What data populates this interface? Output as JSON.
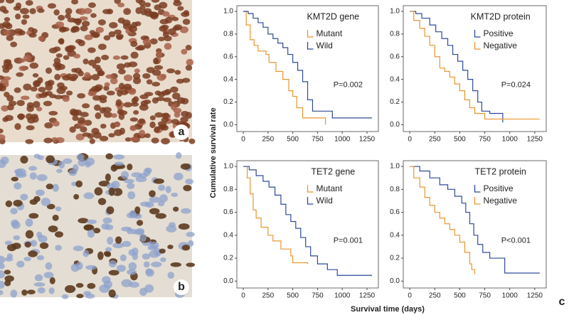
{
  "figure": {
    "ylabel": "Cumulative survival rate",
    "xlabel": "Survival time (days)",
    "panel_labels": [
      "a",
      "b",
      "c"
    ]
  },
  "chart_data": [
    {
      "type": "line",
      "title": "KMT2D gene",
      "annotation": "P=0.002",
      "xlim": [
        -65,
        1365
      ],
      "ylim": [
        -0.06,
        1.05
      ],
      "xticks": [
        0,
        250,
        500,
        750,
        1000,
        1250
      ],
      "yticks": [
        {
          "value": 0,
          "label": "0.0"
        },
        {
          "value": 0.2,
          "label": "0.2"
        },
        {
          "value": 0.4,
          "label": "0.4"
        },
        {
          "value": 0.6,
          "label": "0.6"
        },
        {
          "value": 0.8,
          "label": "0.8"
        },
        {
          "value": 1,
          "label": "1.0"
        }
      ],
      "series": [
        {
          "name": "Mutant",
          "color": "#e8962e",
          "x": [
            0,
            30,
            70,
            110,
            150,
            230,
            260,
            330,
            400,
            460,
            500,
            540,
            600,
            680,
            830
          ],
          "values": [
            1,
            0.88,
            0.75,
            0.7,
            0.65,
            0.62,
            0.55,
            0.47,
            0.4,
            0.3,
            0.25,
            0.15,
            0.06,
            0.06,
            0
          ]
        },
        {
          "name": "Wild",
          "color": "#2e4a9a",
          "x": [
            0,
            50,
            100,
            150,
            200,
            250,
            300,
            350,
            400,
            450,
            500,
            550,
            600,
            650,
            700,
            800,
            900,
            1300
          ],
          "values": [
            1,
            0.98,
            0.94,
            0.9,
            0.86,
            0.8,
            0.76,
            0.72,
            0.68,
            0.62,
            0.55,
            0.48,
            0.38,
            0.22,
            0.12,
            0.12,
            0.06,
            0.06
          ]
        }
      ]
    },
    {
      "type": "line",
      "title": "KMT2D protein",
      "annotation": "P=0.024",
      "xlim": [
        -65,
        1365
      ],
      "ylim": [
        -0.06,
        1.05
      ],
      "xticks": [
        0,
        250,
        500,
        750,
        1000,
        1250
      ],
      "yticks": [
        {
          "value": 0,
          "label": "0.0"
        },
        {
          "value": 0.2,
          "label": "0.2"
        },
        {
          "value": 0.4,
          "label": "0.4"
        },
        {
          "value": 0.6,
          "label": "0.6"
        },
        {
          "value": 0.8,
          "label": "0.8"
        },
        {
          "value": 1,
          "label": "1.0"
        }
      ],
      "series": [
        {
          "name": "Positive",
          "color": "#2e4a9a",
          "x": [
            0,
            60,
            120,
            200,
            260,
            320,
            380,
            430,
            480,
            530,
            580,
            630,
            680,
            720,
            800,
            920,
            930
          ],
          "values": [
            1,
            0.98,
            0.94,
            0.88,
            0.82,
            0.76,
            0.7,
            0.62,
            0.56,
            0.48,
            0.4,
            0.3,
            0.2,
            0.12,
            0.1,
            0.1,
            0.02
          ]
        },
        {
          "name": "Negative",
          "color": "#e8962e",
          "x": [
            0,
            40,
            100,
            150,
            200,
            250,
            300,
            350,
            400,
            450,
            500,
            550,
            600,
            650,
            750,
            1300
          ],
          "values": [
            1,
            0.92,
            0.85,
            0.78,
            0.7,
            0.6,
            0.5,
            0.47,
            0.42,
            0.36,
            0.3,
            0.22,
            0.15,
            0.1,
            0.05,
            0.05
          ]
        }
      ]
    },
    {
      "type": "line",
      "title": "TET2 gene",
      "annotation": "P=0.001",
      "xlim": [
        -65,
        1365
      ],
      "ylim": [
        -0.06,
        1.05
      ],
      "xticks": [
        0,
        250,
        500,
        750,
        1000,
        1250
      ],
      "yticks": [
        {
          "value": 0,
          "label": "0.0"
        },
        {
          "value": 0.2,
          "label": "0.2"
        },
        {
          "value": 0.4,
          "label": "0.4"
        },
        {
          "value": 0.6,
          "label": "0.6"
        },
        {
          "value": 0.8,
          "label": "0.8"
        },
        {
          "value": 1,
          "label": "1.0"
        }
      ],
      "series": [
        {
          "name": "Mutant",
          "color": "#e8962e",
          "x": [
            0,
            40,
            70,
            100,
            130,
            180,
            250,
            300,
            380,
            480,
            500,
            600,
            650
          ],
          "values": [
            1,
            0.9,
            0.76,
            0.62,
            0.55,
            0.47,
            0.4,
            0.35,
            0.28,
            0.22,
            0.16,
            0.16,
            0.15
          ]
        },
        {
          "name": "Wild",
          "color": "#2e4a9a",
          "x": [
            0,
            60,
            130,
            200,
            260,
            320,
            380,
            430,
            480,
            530,
            580,
            630,
            680,
            750,
            850,
            950,
            1300
          ],
          "values": [
            1,
            0.97,
            0.92,
            0.87,
            0.82,
            0.75,
            0.67,
            0.58,
            0.52,
            0.46,
            0.38,
            0.3,
            0.22,
            0.15,
            0.1,
            0.05,
            0.05
          ]
        }
      ]
    },
    {
      "type": "line",
      "title": "TET2 protein",
      "annotation": "P<0.001",
      "xlim": [
        -65,
        1365
      ],
      "ylim": [
        -0.06,
        1.05
      ],
      "xticks": [
        0,
        250,
        500,
        750,
        1000,
        1250
      ],
      "yticks": [
        {
          "value": 0,
          "label": "0.0"
        },
        {
          "value": 0.2,
          "label": "0.2"
        },
        {
          "value": 0.4,
          "label": "0.4"
        },
        {
          "value": 0.6,
          "label": "0.6"
        },
        {
          "value": 0.8,
          "label": "0.8"
        },
        {
          "value": 1,
          "label": "1.0"
        }
      ],
      "series": [
        {
          "name": "Positive",
          "color": "#2e4a9a",
          "x": [
            0,
            100,
            200,
            300,
            380,
            450,
            520,
            560,
            600,
            640,
            680,
            730,
            800,
            950,
            1300
          ],
          "values": [
            1,
            0.96,
            0.9,
            0.84,
            0.8,
            0.74,
            0.68,
            0.6,
            0.5,
            0.4,
            0.32,
            0.25,
            0.2,
            0.07,
            0.07
          ]
        },
        {
          "name": "Negative",
          "color": "#e8962e",
          "x": [
            0,
            40,
            100,
            150,
            200,
            250,
            300,
            350,
            400,
            450,
            500,
            550,
            600,
            620,
            650
          ],
          "values": [
            1,
            0.9,
            0.82,
            0.73,
            0.66,
            0.6,
            0.55,
            0.5,
            0.45,
            0.4,
            0.34,
            0.25,
            0.15,
            0.1,
            0.06
          ]
        }
      ]
    }
  ]
}
